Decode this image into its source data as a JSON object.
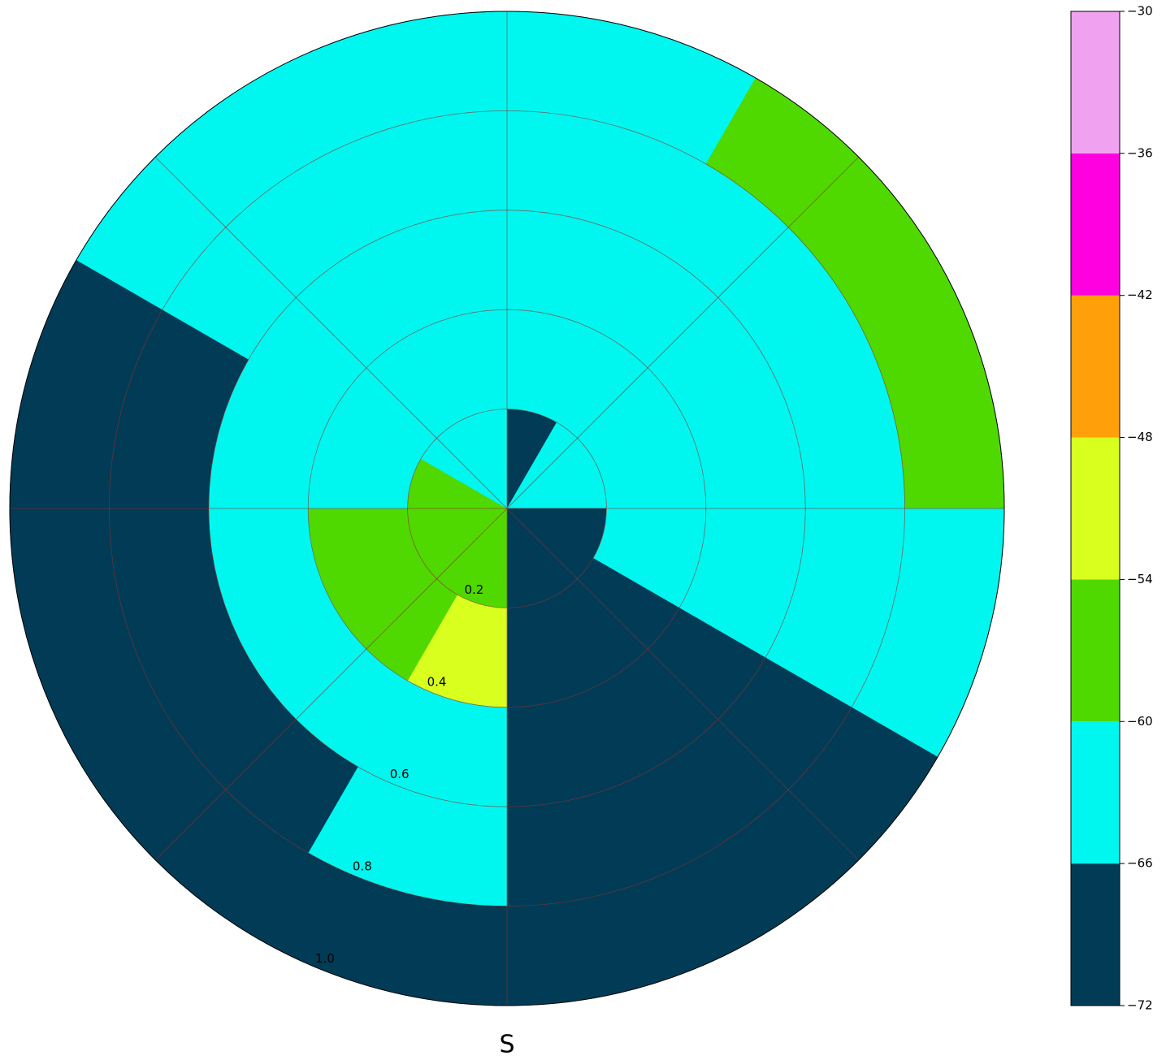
{
  "chart_data": {
    "type": "polar_contourf",
    "direction_label": "S",
    "rlim": [
      0,
      1
    ],
    "rticks": [
      0.2,
      0.4,
      0.6,
      0.8,
      {
        "value": 1,
        "label": "1.0"
      }
    ],
    "thetaticks": [
      0,
      45,
      90,
      135,
      180,
      225,
      270,
      315
    ],
    "field": {
      "theta_edges": [
        0,
        30,
        60,
        90,
        120,
        150,
        180,
        210,
        240,
        270,
        300,
        330,
        360
      ],
      "r_edges": [
        0,
        0.2,
        0.4,
        0.6,
        0.8,
        1
      ],
      "values": [
        [
          -67,
          -63,
          -64,
          -65,
          -66
        ],
        [
          -63,
          -63,
          -64,
          -64,
          -58
        ],
        [
          -64,
          -63,
          -63,
          -63,
          -58
        ],
        [
          -67,
          -66,
          -63,
          -63,
          -63
        ],
        [
          -69,
          -70,
          -70,
          -70,
          -69
        ],
        [
          -69,
          -70,
          -70,
          -70,
          -70
        ],
        [
          -57,
          -51,
          -62,
          -64,
          -70
        ],
        [
          -56,
          -57,
          -62,
          -67,
          -70
        ],
        [
          -59,
          -58,
          -63,
          -67,
          -70
        ],
        [
          -60,
          -62,
          -64,
          -67,
          -70
        ],
        [
          -63,
          -63,
          -64,
          -65,
          -66
        ],
        [
          -64,
          -62,
          -64,
          -65,
          -66
        ]
      ]
    },
    "colorbar": {
      "levels": [
        -72,
        -66,
        -60,
        -54,
        -48,
        -42,
        -36,
        -30
      ],
      "colors": [
        "#023b56",
        "#00f7ef",
        "#4fd900",
        "#d8ff1d",
        "#ffa00a",
        "#ff00e0",
        "#f0a2f0"
      ],
      "ticks": [
        {
          "value": -72,
          "label": "−72"
        },
        {
          "value": -66,
          "label": "−66"
        },
        {
          "value": -60,
          "label": "−60"
        },
        {
          "value": -54,
          "label": "−54"
        },
        {
          "value": -48,
          "label": "−48"
        },
        {
          "value": -42,
          "label": "−42"
        },
        {
          "value": -36,
          "label": "−36"
        },
        {
          "value": -30,
          "label": "−30"
        }
      ]
    }
  }
}
